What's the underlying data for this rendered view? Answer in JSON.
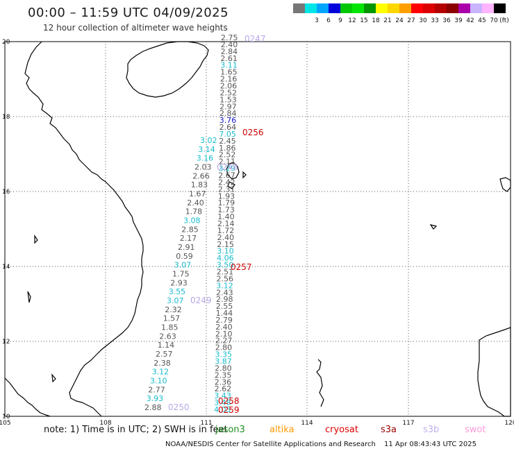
{
  "header": {
    "title": "00:00 – 11:59 UTC 04/09/2025",
    "subtitle": "12 hour collection of altimeter wave heights"
  },
  "scale": {
    "unit": "(ft)",
    "items": [
      {
        "label": "",
        "color": "#777777"
      },
      {
        "label": "3",
        "color": "#00e6e6"
      },
      {
        "label": "6",
        "color": "#00a5ff"
      },
      {
        "label": "9",
        "color": "#0000dc"
      },
      {
        "label": "12",
        "color": "#00c800"
      },
      {
        "label": "15",
        "color": "#00e600"
      },
      {
        "label": "18",
        "color": "#009600"
      },
      {
        "label": "21",
        "color": "#ffff00"
      },
      {
        "label": "24",
        "color": "#ffd700"
      },
      {
        "label": "27",
        "color": "#ffa000"
      },
      {
        "label": "30",
        "color": "#ff0000"
      },
      {
        "label": "33",
        "color": "#dc0000"
      },
      {
        "label": "36",
        "color": "#b40000"
      },
      {
        "label": "39",
        "color": "#8b0000"
      },
      {
        "label": "42",
        "color": "#aa00aa"
      },
      {
        "label": "45",
        "color": "#c8b4ff"
      },
      {
        "label": "70",
        "color": "#ffb4ff"
      },
      {
        "label": "",
        "color": "#000000"
      }
    ]
  },
  "axes": {
    "lon_ticks": [
      "105",
      "108",
      "111",
      "114",
      "117",
      "120"
    ],
    "lat_ticks": [
      "20",
      "18",
      "16",
      "14",
      "12",
      "10"
    ]
  },
  "tracks": {
    "east": [
      {
        "v": "2.75",
        "c": "#555555"
      },
      {
        "v": "2.40",
        "c": "#555555"
      },
      {
        "v": "2.84",
        "c": "#555555"
      },
      {
        "v": "2.61",
        "c": "#555555"
      },
      {
        "v": "3.11",
        "c": "#17bccc"
      },
      {
        "v": "1.65",
        "c": "#555555"
      },
      {
        "v": "2.16",
        "c": "#555555"
      },
      {
        "v": "2.06",
        "c": "#555555"
      },
      {
        "v": "2.52",
        "c": "#555555"
      },
      {
        "v": "1.53",
        "c": "#555555"
      },
      {
        "v": "2.97",
        "c": "#555555"
      },
      {
        "v": "2.84",
        "c": "#555555"
      },
      {
        "v": "3.76",
        "c": "#1414c8"
      },
      {
        "v": "2.64",
        "c": "#555555"
      },
      {
        "v": "7.05",
        "c": "#17bccc"
      },
      {
        "v": "2.45",
        "c": "#555555"
      },
      {
        "v": "1.86",
        "c": "#555555"
      },
      {
        "v": "2.52",
        "c": "#555555"
      },
      {
        "v": "2.11",
        "c": "#555555"
      },
      {
        "v": "3.29",
        "c": "#17bccc"
      },
      {
        "v": "2.67",
        "c": "#555555"
      },
      {
        "v": "2.42",
        "c": "#555555"
      },
      {
        "v": "2.31",
        "c": "#555555"
      },
      {
        "v": "1.93",
        "c": "#555555"
      },
      {
        "v": "1.79",
        "c": "#555555"
      },
      {
        "v": "1.73",
        "c": "#555555"
      },
      {
        "v": "1.40",
        "c": "#555555"
      },
      {
        "v": "2.14",
        "c": "#555555"
      },
      {
        "v": "1.72",
        "c": "#555555"
      },
      {
        "v": "2.40",
        "c": "#555555"
      },
      {
        "v": "2.15",
        "c": "#555555"
      },
      {
        "v": "3.10",
        "c": "#17bccc"
      },
      {
        "v": "4.06",
        "c": "#17bccc"
      },
      {
        "v": "3.50",
        "c": "#17bccc"
      },
      {
        "v": "2.51",
        "c": "#555555"
      },
      {
        "v": "2.56",
        "c": "#555555"
      },
      {
        "v": "3.12",
        "c": "#17bccc"
      },
      {
        "v": "2.43",
        "c": "#555555"
      },
      {
        "v": "2.98",
        "c": "#555555"
      },
      {
        "v": "2.55",
        "c": "#555555"
      },
      {
        "v": "1.44",
        "c": "#555555"
      },
      {
        "v": "2.79",
        "c": "#555555"
      },
      {
        "v": "2.40",
        "c": "#555555"
      },
      {
        "v": "2.10",
        "c": "#555555"
      },
      {
        "v": "2.27",
        "c": "#555555"
      },
      {
        "v": "2.80",
        "c": "#555555"
      },
      {
        "v": "3.35",
        "c": "#17bccc"
      },
      {
        "v": "3.87",
        "c": "#17bccc"
      },
      {
        "v": "2.80",
        "c": "#555555"
      },
      {
        "v": "2.35",
        "c": "#555555"
      },
      {
        "v": "2.36",
        "c": "#555555"
      },
      {
        "v": "2.62",
        "c": "#555555"
      },
      {
        "v": "3.43",
        "c": "#17bccc"
      },
      {
        "v": "3.48",
        "c": "#17bccc"
      },
      {
        "v": "4.05",
        "c": "#17bccc"
      }
    ],
    "west": [
      {
        "v": "3.02",
        "c": "#17bccc"
      },
      {
        "v": "3.14",
        "c": "#17bccc"
      },
      {
        "v": "3.16",
        "c": "#17bccc"
      },
      {
        "v": "2.03",
        "c": "#555555"
      },
      {
        "v": "2.66",
        "c": "#555555"
      },
      {
        "v": "1.83",
        "c": "#555555"
      },
      {
        "v": "1.67",
        "c": "#555555"
      },
      {
        "v": "2.40",
        "c": "#555555"
      },
      {
        "v": "1.78",
        "c": "#555555"
      },
      {
        "v": "3.08",
        "c": "#17bccc"
      },
      {
        "v": "2.85",
        "c": "#555555"
      },
      {
        "v": "2.17",
        "c": "#555555"
      },
      {
        "v": "2.91",
        "c": "#555555"
      },
      {
        "v": "0.59",
        "c": "#555555"
      },
      {
        "v": "3.07",
        "c": "#17bccc"
      },
      {
        "v": "1.75",
        "c": "#555555"
      },
      {
        "v": "2.93",
        "c": "#555555"
      },
      {
        "v": "3.55",
        "c": "#17bccc"
      },
      {
        "v": "3.07",
        "c": "#17bccc"
      },
      {
        "v": "2.32",
        "c": "#555555"
      },
      {
        "v": "1.57",
        "c": "#555555"
      },
      {
        "v": "1.85",
        "c": "#555555"
      },
      {
        "v": "2.63",
        "c": "#555555"
      },
      {
        "v": "1.14",
        "c": "#555555"
      },
      {
        "v": "2.57",
        "c": "#555555"
      },
      {
        "v": "2.38",
        "c": "#555555"
      },
      {
        "v": "3.12",
        "c": "#17bccc"
      },
      {
        "v": "3.10",
        "c": "#17bccc"
      },
      {
        "v": "2.77",
        "c": "#555555"
      },
      {
        "v": "3.93",
        "c": "#17bccc"
      },
      {
        "v": "2.88",
        "c": "#555555"
      }
    ]
  },
  "pass_labels": [
    {
      "t": "0247",
      "c": "#b9a7e6"
    },
    {
      "t": "0256",
      "c": "#cc0000"
    },
    {
      "t": "0248",
      "c": "#b9a7e6"
    },
    {
      "t": "0257",
      "c": "#cc0000"
    },
    {
      "t": "0249",
      "c": "#b9a7e6"
    },
    {
      "t": "0258",
      "c": "#cc0000"
    },
    {
      "t": "0259",
      "c": "#cc0000"
    },
    {
      "t": "0250",
      "c": "#b9a7e6"
    }
  ],
  "footer": {
    "note": "note:  1) Time is in UTC;  2) SWH is in feet",
    "satellites": [
      {
        "name": "jason3",
        "color": "#1e8c1e"
      },
      {
        "name": "altika",
        "color": "#ff9900"
      },
      {
        "name": "cryosat",
        "color": "#dd0000"
      },
      {
        "name": "s3a",
        "color": "#990000"
      },
      {
        "name": "s3b",
        "color": "#c0b0f0"
      },
      {
        "name": "swot",
        "color": "#ff99dd"
      }
    ],
    "credit": "NOAA/NESDIS Center for Satellite Applications and Research",
    "timestamp": "11 Apr 08:43:43 UTC 2025"
  }
}
